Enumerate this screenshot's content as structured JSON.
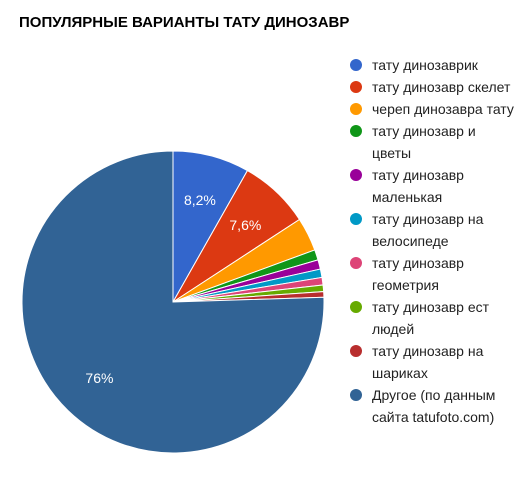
{
  "chart_data": {
    "type": "pie",
    "title": "ПОПУЛЯРНЫЕ ВАРИАНТЫ ТАТУ ДИНОЗАВР",
    "legend_position": "right",
    "slices": [
      {
        "label": "тату динозаврик",
        "value": 8.2,
        "color": "#3366cc",
        "data_label": "8,2%"
      },
      {
        "label": "тату динозавр скелет",
        "value": 7.6,
        "color": "#dc3912",
        "data_label": "7,6%"
      },
      {
        "label": "череп динозавра тату",
        "value": 3.6,
        "color": "#ff9900",
        "data_label": ""
      },
      {
        "label": "тату динозавр и цветы",
        "value": 1.1,
        "color": "#109618",
        "data_label": ""
      },
      {
        "label": "тату динозавр маленькая",
        "value": 1.0,
        "color": "#990099",
        "data_label": ""
      },
      {
        "label": "тату динозавр на велосипеде",
        "value": 0.9,
        "color": "#0099c6",
        "data_label": ""
      },
      {
        "label": "тату динозавр геометрия",
        "value": 0.8,
        "color": "#dd4477",
        "data_label": ""
      },
      {
        "label": "тату динозавр ест людей",
        "value": 0.7,
        "color": "#66aa00",
        "data_label": ""
      },
      {
        "label": "тату динозавр на шариках",
        "value": 0.6,
        "color": "#b82e2e",
        "data_label": ""
      },
      {
        "label": "Другое (по данным сайта tatufoto.com)",
        "value": 75.5,
        "color": "#316395",
        "data_label": "76%"
      }
    ]
  }
}
